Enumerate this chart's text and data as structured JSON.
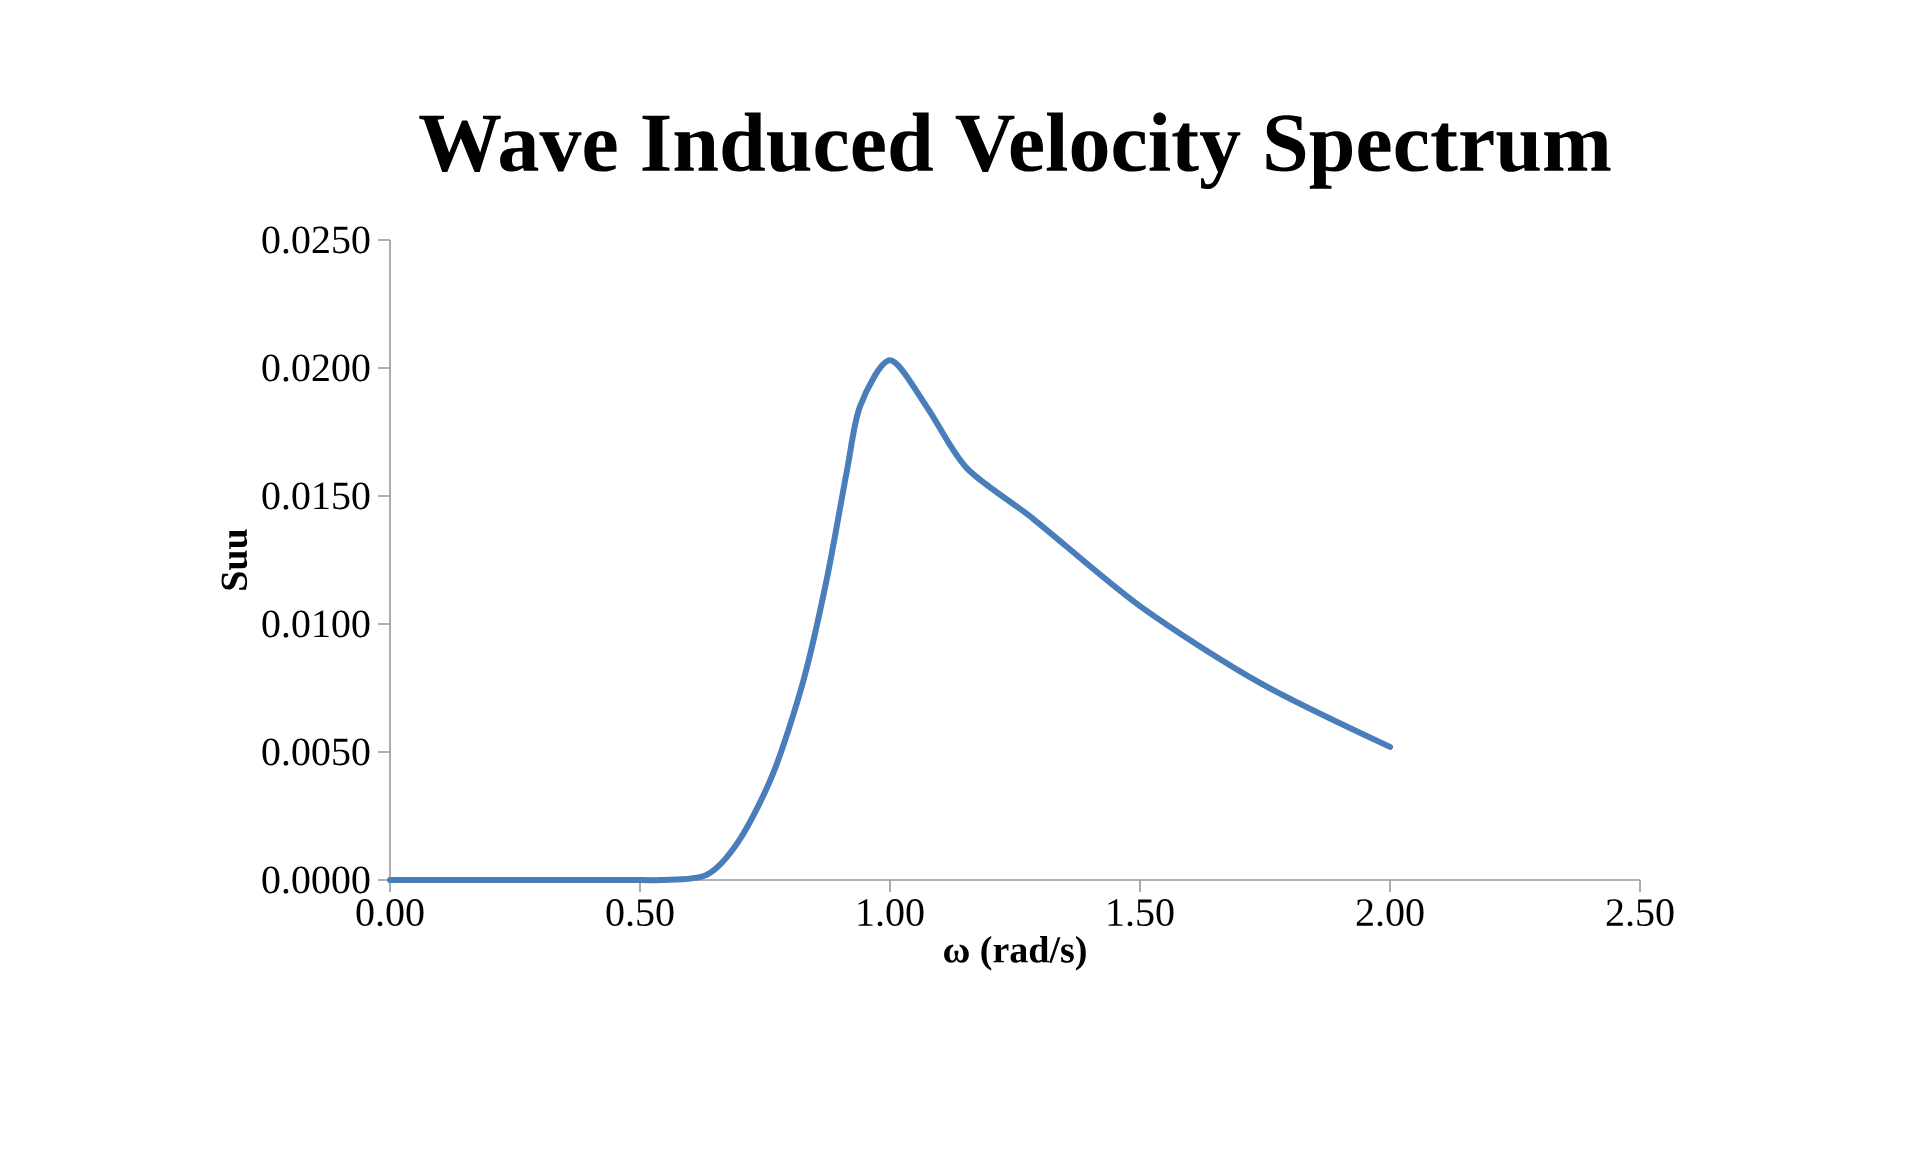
{
  "chart_data": {
    "type": "line",
    "title": "Wave Induced Velocity Spectrum",
    "xlabel": "ω (rad/s)",
    "ylabel": "Suu",
    "color": "#4a7ebb",
    "x": [
      0,
      0.25,
      0.5,
      0.54,
      0.633,
      0.7,
      0.767,
      0.827,
      0.873,
      0.913,
      0.94,
      1.0,
      1.073,
      1.153,
      1.287,
      1.5,
      1.74,
      2.0
    ],
    "values": [
      0,
      0,
      0,
      0,
      0.0002,
      0.0016,
      0.0042,
      0.0078,
      0.0117,
      0.0159,
      0.0185,
      0.0203,
      0.0185,
      0.0161,
      0.0141,
      0.0107,
      0.0077,
      0.0052
    ],
    "xlim": [
      0,
      2.5
    ],
    "ylim": [
      0,
      0.025
    ],
    "xticks": [
      {
        "value": 0,
        "label": "0.00"
      },
      {
        "value": 0.5,
        "label": "0.50"
      },
      {
        "value": 1.0,
        "label": "1.00"
      },
      {
        "value": 1.5,
        "label": "1.50"
      },
      {
        "value": 2.0,
        "label": "2.00"
      },
      {
        "value": 2.5,
        "label": "2.50"
      }
    ],
    "yticks": [
      {
        "value": 0,
        "label": "0.0000"
      },
      {
        "value": 0.005,
        "label": "0.0050"
      },
      {
        "value": 0.01,
        "label": "0.0100"
      },
      {
        "value": 0.015,
        "label": "0.0150"
      },
      {
        "value": 0.02,
        "label": "0.0200"
      },
      {
        "value": 0.025,
        "label": "0.0250"
      }
    ]
  }
}
